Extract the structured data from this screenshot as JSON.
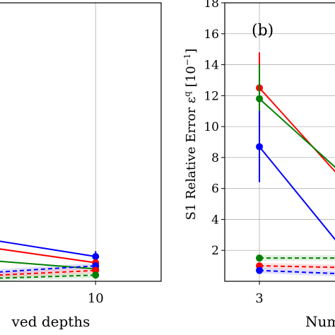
{
  "chart_data": [
    {
      "panel": "a",
      "type": "line",
      "xlabel": "ved depths",
      "x_ticks": [
        10
      ],
      "xlim": [
        8.12,
        11.27
      ],
      "ylim": [
        0,
        18
      ],
      "grid": true,
      "series": [
        {
          "color": "#0000ff",
          "style": "solid",
          "x": [
            8.12,
            10
          ],
          "y": [
            2.6,
            1.6
          ],
          "err": [
            null,
            0.35
          ]
        },
        {
          "color": "#ff0000",
          "style": "solid",
          "x": [
            8.12,
            10
          ],
          "y": [
            2.1,
            1.2
          ],
          "err": [
            null,
            null
          ]
        },
        {
          "color": "#008000",
          "style": "solid",
          "x": [
            8.12,
            10
          ],
          "y": [
            1.3,
            0.8
          ],
          "err": [
            null,
            null
          ]
        },
        {
          "color": "#0000ff",
          "style": "dashed",
          "x": [
            8.12,
            10
          ],
          "y": [
            0.6,
            1.0
          ],
          "err": [
            null,
            null
          ]
        },
        {
          "color": "#ff0000",
          "style": "dashed",
          "x": [
            8.12,
            10
          ],
          "y": [
            0.4,
            0.7
          ],
          "err": [
            null,
            null
          ]
        },
        {
          "color": "#008000",
          "style": "dashed",
          "x": [
            8.12,
            10
          ],
          "y": [
            0.2,
            0.4
          ],
          "err": [
            null,
            null
          ]
        }
      ]
    },
    {
      "panel": "b",
      "type": "line",
      "panel_label": "(b)",
      "xlabel": "Num",
      "ylabel": "S1 Relative Error ε",
      "ylabel_sup": "q",
      "ylabel_unit_open": "[10",
      "ylabel_unit_exp": "−1",
      "ylabel_unit_close": "]",
      "x_ticks": [
        3
      ],
      "xlim": [
        2.55,
        4.0
      ],
      "ylim": [
        0,
        18
      ],
      "y_ticks": [
        2,
        4,
        6,
        8,
        10,
        12,
        14,
        16,
        18
      ],
      "grid": true,
      "series": [
        {
          "color": "#ff0000",
          "style": "solid",
          "x": [
            3,
            4.0
          ],
          "y": [
            12.5,
            7.0
          ],
          "err": [
            2.3,
            null
          ]
        },
        {
          "color": "#008000",
          "style": "solid",
          "x": [
            3,
            4.0
          ],
          "y": [
            11.8,
            7.3
          ],
          "err": [
            2.2,
            null
          ]
        },
        {
          "color": "#0000ff",
          "style": "solid",
          "x": [
            3,
            4.0
          ],
          "y": [
            8.7,
            2.6
          ],
          "err": [
            2.3,
            null
          ]
        },
        {
          "color": "#008000",
          "style": "dashed",
          "x": [
            3,
            4.0
          ],
          "y": [
            1.5,
            1.5
          ],
          "err": [
            null,
            null
          ]
        },
        {
          "color": "#ff0000",
          "style": "dashed",
          "x": [
            3,
            4.0
          ],
          "y": [
            1.0,
            0.9
          ],
          "err": [
            null,
            null
          ]
        },
        {
          "color": "#0000ff",
          "style": "dashed",
          "x": [
            3,
            4.0
          ],
          "y": [
            0.7,
            0.5
          ],
          "err": [
            null,
            null
          ]
        }
      ]
    }
  ]
}
